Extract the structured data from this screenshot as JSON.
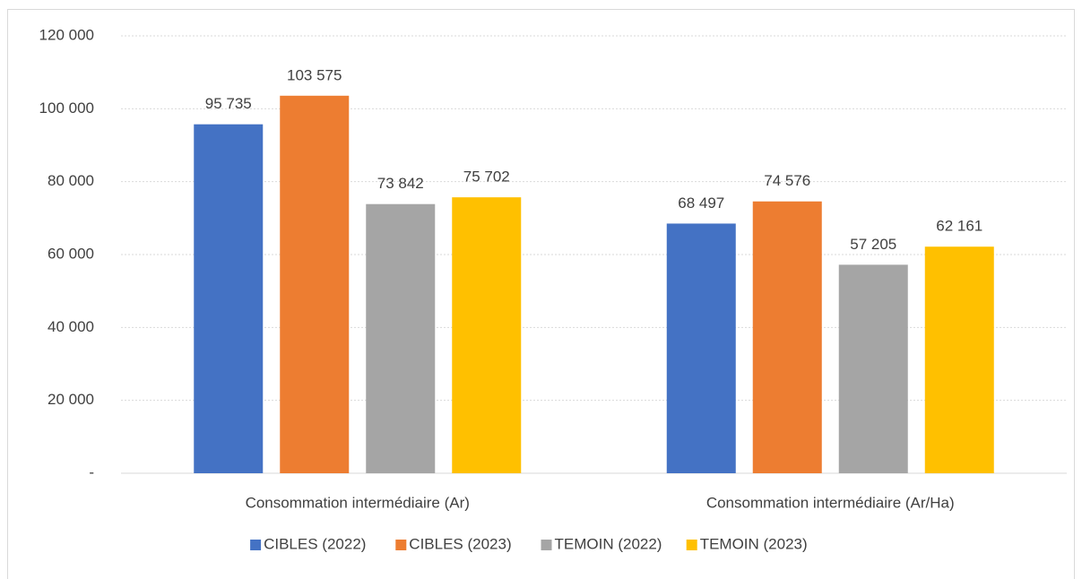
{
  "chart_data": {
    "type": "bar",
    "categories": [
      "Consommation intermédiaire (Ar)",
      "Consommation intermédiaire (Ar/Ha)"
    ],
    "series": [
      {
        "name": "CIBLES (2022)",
        "color": "#4472c4",
        "values": [
          95735,
          68497
        ],
        "value_labels": [
          "95 735",
          "68 497"
        ]
      },
      {
        "name": "CIBLES (2023)",
        "color": "#ed7d31",
        "values": [
          103575,
          74576
        ],
        "value_labels": [
          "103 575",
          "74 576"
        ]
      },
      {
        "name": "TEMOIN (2022)",
        "color": "#a5a5a5",
        "values": [
          73842,
          57205
        ],
        "value_labels": [
          "73 842",
          "57 205"
        ]
      },
      {
        "name": "TEMOIN (2023)",
        "color": "#ffc000",
        "values": [
          75702,
          62161
        ],
        "value_labels": [
          "75 702",
          "62 161"
        ]
      }
    ],
    "ylim": [
      0,
      120000
    ],
    "yticks": [
      {
        "value": 0,
        "label": "-"
      },
      {
        "value": 20000,
        "label": "20 000"
      },
      {
        "value": 40000,
        "label": "40 000"
      },
      {
        "value": 60000,
        "label": "60 000"
      },
      {
        "value": 80000,
        "label": "80 000"
      },
      {
        "value": 100000,
        "label": "100 000"
      },
      {
        "value": 120000,
        "label": "120 000"
      }
    ],
    "grid": true,
    "legend": "bottom"
  }
}
